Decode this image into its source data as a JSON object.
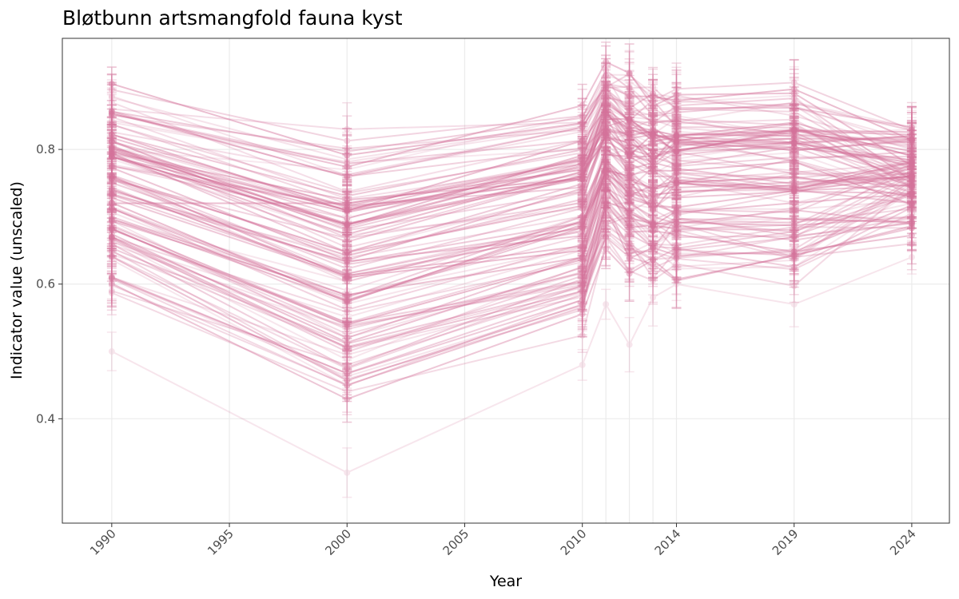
{
  "chart_data": {
    "type": "line",
    "title": "Bløtbunn artsmangfold fauna kyst",
    "xlabel": "Year",
    "ylabel": "Indicator value (unscaled)",
    "xlim": [
      1987.9,
      2025.6
    ],
    "ylim": [
      0.245,
      0.965
    ],
    "x_ticks": [
      1990,
      1995,
      2000,
      2005,
      2010,
      2014,
      2019,
      2024
    ],
    "x_tick_labels": [
      "1990",
      "1995",
      "2000",
      "2005",
      "2010",
      "2014",
      "2019",
      "2024"
    ],
    "x_gridlines": [
      1990,
      1995,
      2000,
      2005,
      2010,
      2011,
      2012,
      2013,
      2014,
      2019,
      2024
    ],
    "y_ticks": [
      0.4,
      0.6,
      0.8
    ],
    "y_tick_labels": [
      "0.4",
      "0.6",
      "0.8"
    ],
    "grid": true,
    "legend": "none",
    "color": "#d4729a",
    "years": [
      1990,
      2000,
      2010,
      2011,
      2012,
      2013,
      2014,
      2019,
      2024
    ],
    "approx_series_count": 110,
    "series": [
      {
        "values": [
          0.5,
          0.32,
          0.48,
          0.57,
          0.51,
          0.58,
          0.6,
          0.57,
          0.64
        ]
      },
      {
        "values": [
          0.8,
          0.77,
          0.85,
          0.91,
          0.9,
          0.88,
          0.87,
          0.88,
          0.72
        ]
      },
      {
        "values": [
          0.8,
          0.69,
          0.76,
          0.82,
          0.8,
          0.79,
          0.8,
          0.81,
          0.82
        ]
      },
      {
        "values": [
          0.72,
          0.72,
          0.77,
          0.85,
          0.83,
          0.82,
          0.82,
          0.84,
          0.79
        ]
      },
      {
        "values": [
          0.76,
          0.61,
          0.65,
          0.77,
          0.76,
          0.74,
          0.75,
          0.76,
          0.73
        ]
      },
      {
        "values": [
          0.67,
          0.52,
          0.64,
          0.76,
          0.72,
          0.7,
          0.69,
          0.71,
          0.69
        ]
      },
      {
        "values": [
          0.86,
          0.83,
          0.84,
          0.9,
          0.88,
          0.87,
          0.88,
          0.85,
          0.8
        ]
      },
      {
        "values": [
          0.59,
          0.48,
          0.59,
          0.67,
          0.62,
          0.64,
          0.69,
          0.64,
          0.66
        ]
      },
      {
        "values": [
          0.84,
          0.78,
          0.8,
          0.88,
          0.86,
          0.85,
          0.85,
          0.82,
          0.83
        ]
      },
      {
        "values": [
          0.7,
          0.58,
          0.7,
          0.8,
          0.78,
          0.76,
          0.76,
          0.74,
          0.72
        ]
      }
    ]
  }
}
